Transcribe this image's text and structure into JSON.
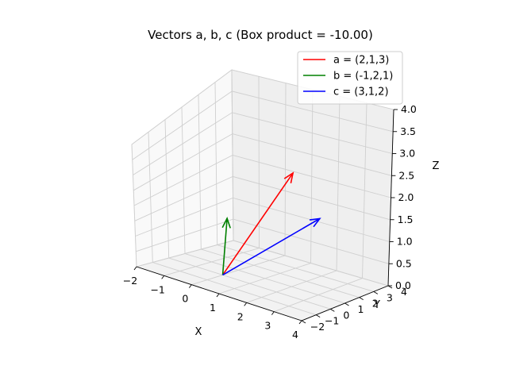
{
  "chart_data": {
    "type": "3d-quiver",
    "title": "Vectors a, b, c (Box product = -10.00)",
    "xlabel": "X",
    "ylabel": "Y",
    "zlabel": "Z",
    "xlim": [
      -2,
      4
    ],
    "ylim": [
      -2,
      4
    ],
    "zlim": [
      0,
      4
    ],
    "x_ticks": [
      "−2",
      "−1",
      "0",
      "1",
      "2",
      "3",
      "4"
    ],
    "y_ticks": [
      "−2",
      "−1",
      "0",
      "1",
      "2",
      "3",
      "4"
    ],
    "z_ticks": [
      "0.0",
      "0.5",
      "1.0",
      "1.5",
      "2.0",
      "2.5",
      "3.0",
      "3.5",
      "4.0"
    ],
    "grid": true,
    "legend_position": "top-right",
    "series": [
      {
        "name": "a = (2,1,3)",
        "color": "#ff0000",
        "origin": [
          0,
          0,
          0
        ],
        "vector": [
          2,
          1,
          3
        ]
      },
      {
        "name": "b = (-1,2,1)",
        "color": "#008000",
        "origin": [
          0,
          0,
          0
        ],
        "vector": [
          -1,
          2,
          1
        ]
      },
      {
        "name": "c = (3,1,2)",
        "color": "#0000ff",
        "origin": [
          0,
          0,
          0
        ],
        "vector": [
          3,
          1,
          2
        ]
      }
    ]
  }
}
